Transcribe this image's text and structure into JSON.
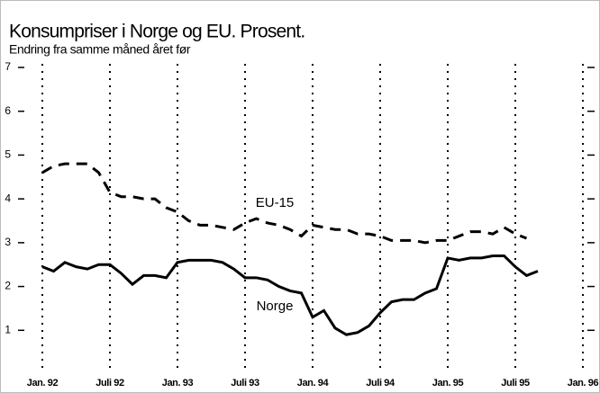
{
  "chart_data": {
    "type": "line",
    "title": "Konsumpriser i Norge og EU. Prosent.",
    "subtitle": "Endring fra samme måned året før",
    "categories": [
      "Jan. 92",
      null,
      null,
      null,
      null,
      null,
      "Juli 92",
      null,
      null,
      null,
      null,
      null,
      "Jan. 93",
      null,
      null,
      null,
      null,
      null,
      "Juli 93",
      null,
      null,
      null,
      null,
      null,
      "Jan. 94",
      null,
      null,
      null,
      null,
      null,
      "Juli 94",
      null,
      null,
      null,
      null,
      null,
      "Jan. 95",
      null,
      null,
      null,
      null,
      null,
      "Juli 95",
      null,
      null,
      null,
      null,
      null,
      "Jan. 96"
    ],
    "series": [
      {
        "name": "EU-15",
        "color": "#000000",
        "style": "dashed",
        "values": [
          4.6,
          4.75,
          4.8,
          4.8,
          4.8,
          4.6,
          4.15,
          4.05,
          4.05,
          4.0,
          4.0,
          3.8,
          3.7,
          3.5,
          3.4,
          3.4,
          3.35,
          3.3,
          3.45,
          3.55,
          3.45,
          3.4,
          3.3,
          3.15,
          3.4,
          3.35,
          3.3,
          3.3,
          3.2,
          3.2,
          3.15,
          3.05,
          3.05,
          3.05,
          3.0,
          3.05,
          3.05,
          3.15,
          3.25,
          3.25,
          3.2,
          3.35,
          3.2,
          3.1,
          null,
          null,
          null,
          null,
          null
        ]
      },
      {
        "name": "Norge",
        "color": "#000000",
        "style": "solid",
        "values": [
          2.45,
          2.35,
          2.55,
          2.45,
          2.4,
          2.5,
          2.5,
          2.3,
          2.05,
          2.25,
          2.25,
          2.2,
          2.55,
          2.6,
          2.6,
          2.6,
          2.55,
          2.4,
          2.2,
          2.2,
          2.15,
          2.0,
          1.9,
          1.85,
          1.3,
          1.45,
          1.05,
          0.9,
          0.95,
          1.1,
          1.4,
          1.65,
          1.7,
          1.7,
          1.85,
          1.95,
          2.65,
          2.6,
          2.65,
          2.65,
          2.7,
          2.7,
          2.45,
          2.25,
          2.35,
          null,
          null,
          null,
          null
        ]
      }
    ],
    "ylim": [
      0,
      7
    ],
    "yticks": [
      1,
      2,
      3,
      4,
      5,
      6,
      7
    ],
    "grid": "vertical-dotted"
  }
}
